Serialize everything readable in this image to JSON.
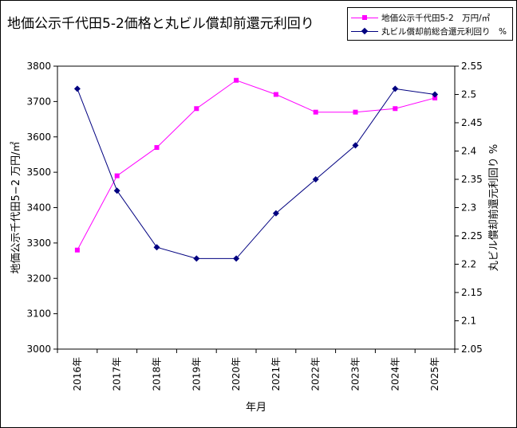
{
  "chart_data": {
    "type": "line",
    "title": "地価公示千代田5-2価格と丸ビル償却前還元利回り",
    "xlabel": "年月",
    "ylabel": "地価公示千代田5−2 万円/㎡",
    "y2label": "丸ビル償却前還元利回り %",
    "categories": [
      "2016年",
      "2017年",
      "2018年",
      "2019年",
      "2020年",
      "2021年",
      "2022年",
      "2023年",
      "2024年",
      "2025年"
    ],
    "y_ticks": [
      "3000",
      "3100",
      "3200",
      "3300",
      "3400",
      "3500",
      "3600",
      "3700",
      "3800"
    ],
    "y2_ticks": [
      "2.05",
      "2.1",
      "2.15",
      "2.2",
      "2.25",
      "2.3",
      "2.35",
      "2.4",
      "2.45",
      "2.5",
      "2.55"
    ],
    "ylim": [
      3000,
      3800
    ],
    "y2lim": [
      2.05,
      2.55
    ],
    "grid": false,
    "legend_position": "top-right",
    "series": [
      {
        "name": "地価公示千代田5-2　万円/㎡",
        "axis": "left",
        "color": "#ff00ff",
        "marker": "square",
        "values": [
          3280,
          3490,
          3570,
          3680,
          3760,
          3720,
          3670,
          3670,
          3680,
          3710
        ]
      },
      {
        "name": "丸ビル償却前総合還元利回り　%",
        "axis": "right",
        "color": "#000080",
        "marker": "diamond",
        "values": [
          2.51,
          2.33,
          2.23,
          2.21,
          2.21,
          2.29,
          2.35,
          2.41,
          2.51,
          2.5
        ]
      }
    ]
  }
}
